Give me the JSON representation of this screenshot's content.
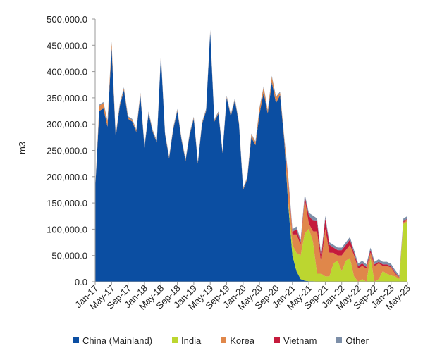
{
  "chart_data": {
    "type": "area",
    "stacked": true,
    "ylabel": "m3",
    "xlabel": "",
    "ylim": [
      0,
      500000
    ],
    "yticks": [
      "0.0",
      "50,000.0",
      "100,000.0",
      "150,000.0",
      "200,000.0",
      "250,000.0",
      "300,000.0",
      "350,000.0",
      "400,000.0",
      "450,000.0",
      "500,000.0"
    ],
    "xtick_labels": [
      "Jan-17",
      "May-17",
      "Sep-17",
      "Jan-18",
      "May-18",
      "Sep-18",
      "Jan-19",
      "May-19",
      "Sep-19",
      "Jan-20",
      "May-20",
      "Sep-20",
      "Jan-21",
      "May-21",
      "Sep-21",
      "Jan-22",
      "May-22",
      "Sep-22",
      "Jan-23",
      "May-23"
    ],
    "x_start": "Jan-17",
    "x_end": "May-23",
    "grid": false,
    "legend_position": "bottom",
    "series": [
      {
        "name": "China (Mainland)",
        "color": "#0b4ea2",
        "values": [
          175000,
          325000,
          330000,
          295000,
          445000,
          275000,
          335000,
          365000,
          310000,
          305000,
          285000,
          355000,
          255000,
          320000,
          285000,
          265000,
          430000,
          280000,
          235000,
          290000,
          325000,
          270000,
          230000,
          280000,
          310000,
          225000,
          300000,
          325000,
          475000,
          305000,
          320000,
          245000,
          350000,
          315000,
          345000,
          300000,
          175000,
          195000,
          275000,
          260000,
          320000,
          360000,
          320000,
          380000,
          340000,
          355000,
          270000,
          145000,
          50000,
          20000,
          5000,
          2000,
          1000,
          1000,
          500,
          500,
          300,
          300,
          200,
          200,
          100,
          100,
          100,
          100,
          100,
          100,
          100,
          100,
          100,
          100,
          100,
          100,
          100,
          100,
          100,
          100,
          100
        ]
      },
      {
        "name": "India",
        "color": "#bcd630",
        "values": [
          0,
          0,
          0,
          0,
          0,
          0,
          0,
          0,
          0,
          0,
          0,
          0,
          0,
          0,
          0,
          0,
          0,
          0,
          0,
          0,
          0,
          0,
          0,
          0,
          0,
          0,
          0,
          0,
          0,
          0,
          0,
          0,
          0,
          0,
          0,
          0,
          0,
          0,
          0,
          0,
          0,
          0,
          0,
          0,
          0,
          0,
          0,
          5000,
          20000,
          35000,
          45000,
          90000,
          100000,
          75000,
          15000,
          15000,
          10000,
          10000,
          35000,
          40000,
          20000,
          40000,
          45000,
          10000,
          0,
          5000,
          0,
          45000,
          0,
          5000,
          20000,
          15000,
          12000,
          10000,
          5000,
          110000,
          115000
        ]
      },
      {
        "name": "Korea",
        "color": "#e0874a",
        "values": [
          0,
          10000,
          10000,
          10000,
          10000,
          3000,
          3000,
          3000,
          3000,
          3000,
          3000,
          3000,
          2000,
          2000,
          2000,
          2000,
          2000,
          2000,
          2000,
          2000,
          2000,
          2000,
          2000,
          2000,
          2000,
          2000,
          2000,
          2000,
          2000,
          2000,
          2000,
          2000,
          2000,
          2000,
          2000,
          2000,
          2000,
          2000,
          5000,
          5000,
          10000,
          10000,
          5000,
          10000,
          10000,
          5000,
          5000,
          40000,
          20000,
          35000,
          20000,
          65000,
          10000,
          20000,
          80000,
          20000,
          90000,
          45000,
          20000,
          10000,
          30000,
          20000,
          25000,
          40000,
          25000,
          25000,
          25000,
          10000,
          30000,
          30000,
          10000,
          15000,
          15000,
          5000,
          3000,
          3000,
          3000
        ]
      },
      {
        "name": "Vietnam",
        "color": "#c51b3c",
        "values": [
          0,
          0,
          0,
          0,
          0,
          0,
          0,
          0,
          0,
          0,
          0,
          0,
          0,
          0,
          0,
          0,
          0,
          0,
          0,
          0,
          0,
          0,
          0,
          0,
          0,
          0,
          0,
          0,
          0,
          0,
          0,
          0,
          0,
          0,
          0,
          0,
          0,
          0,
          0,
          0,
          0,
          0,
          0,
          0,
          0,
          0,
          0,
          5000,
          5000,
          10000,
          5000,
          5000,
          15000,
          20000,
          20000,
          10000,
          20000,
          15000,
          10000,
          10000,
          10000,
          10000,
          10000,
          5000,
          5000,
          5000,
          3000,
          5000,
          3000,
          3000,
          3000,
          3000,
          2000,
          2000,
          1000,
          2000,
          2000
        ]
      },
      {
        "name": "Other",
        "color": "#7d8fa8",
        "values": [
          0,
          2000,
          2000,
          2000,
          2000,
          2000,
          2000,
          2000,
          2000,
          2000,
          2000,
          2000,
          2000,
          2000,
          2000,
          2000,
          2000,
          2000,
          2000,
          2000,
          2000,
          2000,
          2000,
          2000,
          2000,
          2000,
          2000,
          2000,
          2000,
          2000,
          2000,
          2000,
          2000,
          2000,
          2000,
          2000,
          2000,
          2000,
          2000,
          2000,
          2000,
          2000,
          2000,
          2000,
          2000,
          2000,
          2000,
          5000,
          5000,
          5000,
          5000,
          5000,
          5000,
          10000,
          5000,
          5000,
          5000,
          5000,
          5000,
          5000,
          5000,
          5000,
          5000,
          5000,
          5000,
          5000,
          5000,
          5000,
          5000,
          5000,
          5000,
          5000,
          5000,
          5000,
          3000,
          5000,
          5000
        ]
      }
    ]
  }
}
